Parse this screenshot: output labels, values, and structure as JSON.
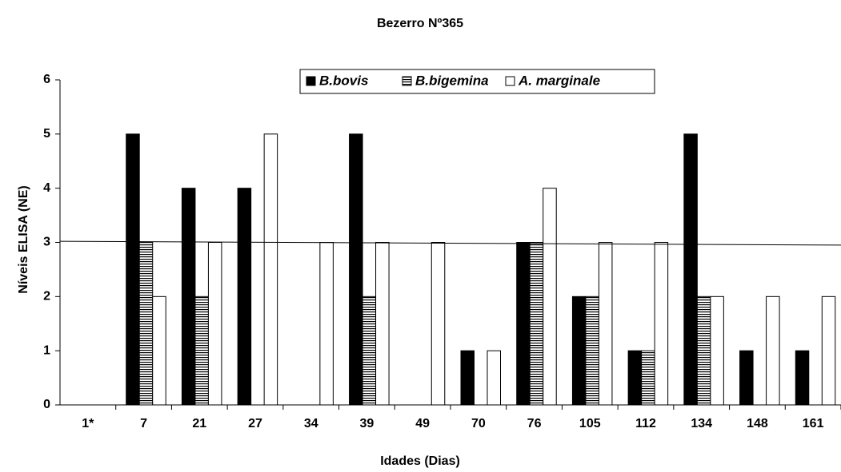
{
  "chart_data": {
    "type": "bar",
    "title": "Bezerro Nº365",
    "x_label": "Idades (Dias)",
    "y_label": "Níveis ELISA (NE)",
    "categories": [
      "1*",
      "7",
      "21",
      "27",
      "34",
      "39",
      "49",
      "70",
      "76",
      "105",
      "112",
      "134",
      "148",
      "161"
    ],
    "series": [
      {
        "name": "B.bovis",
        "color": "#000000",
        "pattern": "solid",
        "values": [
          0,
          5,
          4,
          4,
          0,
          5,
          0,
          1,
          3,
          2,
          1,
          5,
          1,
          1
        ]
      },
      {
        "name": "B.bigemina",
        "color": "#000000",
        "pattern": "horizontal-lines",
        "values": [
          0,
          3,
          2,
          0,
          0,
          2,
          0,
          0,
          3,
          2,
          1,
          2,
          0,
          0
        ]
      },
      {
        "name": "A. marginale",
        "color": "#ffffff",
        "pattern": "solid",
        "values": [
          0,
          2,
          3,
          5,
          3,
          3,
          3,
          1,
          4,
          3,
          3,
          2,
          2,
          2
        ]
      }
    ],
    "reference_line": {
      "start": 3.02,
      "end": 2.95
    },
    "ylim": [
      0,
      6
    ],
    "yticks": [
      0,
      1,
      2,
      3,
      4,
      5,
      6
    ],
    "grid": false,
    "legend": "top"
  }
}
